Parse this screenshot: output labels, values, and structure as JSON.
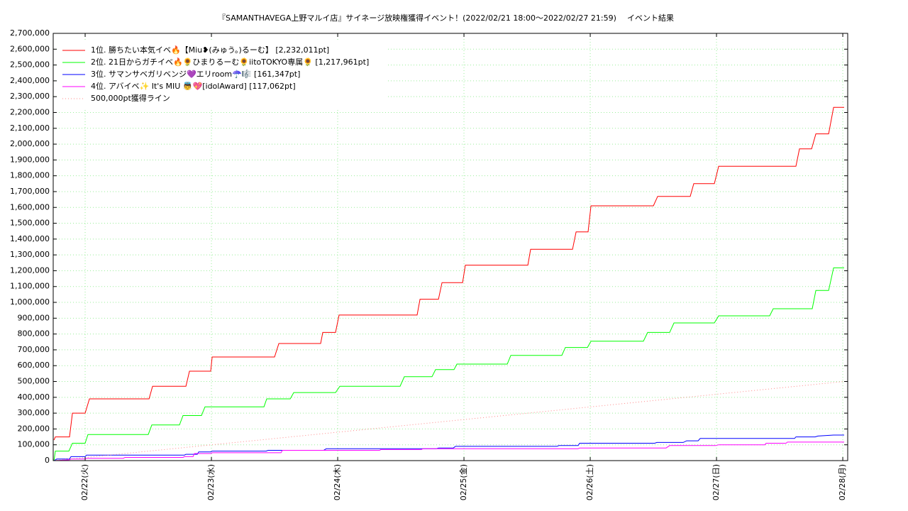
{
  "chart_data": {
    "type": "line",
    "title": "『SAMANTHAVEGA上野マルイ店』サイネージ放映権獲得イベント！(2022/02/21 18:00〜2022/02/27 21:59)",
    "subtitle": "イベント結果",
    "xlim": [
      -0.253,
      6.039
    ],
    "xticks": [
      {
        "value": 0,
        "label": "02/22(火)"
      },
      {
        "value": 1,
        "label": "02/23(水)"
      },
      {
        "value": 2,
        "label": "02/24(木)"
      },
      {
        "value": 3,
        "label": "02/25(金)"
      },
      {
        "value": 4,
        "label": "02/26(土)"
      },
      {
        "value": 5,
        "label": "02/27(日)"
      },
      {
        "value": 6,
        "label": "02/28(月)"
      }
    ],
    "ylim": [
      0,
      2700000
    ],
    "yticks": [
      {
        "value": 0,
        "label": "0"
      },
      {
        "value": 100000,
        "label": "100,000"
      },
      {
        "value": 200000,
        "label": "200,000"
      },
      {
        "value": 300000,
        "label": "300,000"
      },
      {
        "value": 400000,
        "label": "400,000"
      },
      {
        "value": 500000,
        "label": "500,000"
      },
      {
        "value": 600000,
        "label": "600,000"
      },
      {
        "value": 700000,
        "label": "700,000"
      },
      {
        "value": 800000,
        "label": "800,000"
      },
      {
        "value": 900000,
        "label": "900,000"
      },
      {
        "value": 1000000,
        "label": "1,000,000"
      },
      {
        "value": 1100000,
        "label": "1,100,000"
      },
      {
        "value": 1200000,
        "label": "1,200,000"
      },
      {
        "value": 1300000,
        "label": "1,300,000"
      },
      {
        "value": 1400000,
        "label": "1,400,000"
      },
      {
        "value": 1500000,
        "label": "1,500,000"
      },
      {
        "value": 1600000,
        "label": "1,600,000"
      },
      {
        "value": 1700000,
        "label": "1,700,000"
      },
      {
        "value": 1800000,
        "label": "1,800,000"
      },
      {
        "value": 1900000,
        "label": "1,900,000"
      },
      {
        "value": 2000000,
        "label": "2,000,000"
      },
      {
        "value": 2100000,
        "label": "2,100,000"
      },
      {
        "value": 2200000,
        "label": "2,200,000"
      },
      {
        "value": 2300000,
        "label": "2,300,000"
      },
      {
        "value": 2400000,
        "label": "2,400,000"
      },
      {
        "value": 2500000,
        "label": "2,500,000"
      },
      {
        "value": 2600000,
        "label": "2,600,000"
      },
      {
        "value": 2700000,
        "label": "2,700,000"
      }
    ],
    "grid": true,
    "legend": "top-left",
    "series": [
      {
        "name": "1位. 勝ちたい本気イベ🔥【Miu❥(みゅう。)るーむ】 [2,232,011pt]",
        "color": "#ff0000",
        "x": [
          -0.247,
          -0.236,
          -0.124,
          -0.101,
          0,
          0.034,
          0.506,
          0.534,
          0.798,
          0.826,
          0.994,
          1.006,
          1.5,
          1.534,
          1.865,
          1.882,
          1.983,
          2.011,
          2.629,
          2.652,
          2.798,
          2.826,
          2.989,
          3.011,
          3.506,
          3.528,
          3.86,
          3.888,
          3.983,
          4.006,
          4.5,
          4.534,
          4.792,
          4.82,
          4.983,
          5.017,
          5.629,
          5.657,
          5.753,
          5.787,
          5.888,
          5.927,
          6.011
        ],
        "values": [
          130000,
          150000,
          150000,
          300000,
          300000,
          390000,
          390000,
          470000,
          470000,
          565000,
          565000,
          655000,
          655000,
          740000,
          740000,
          810000,
          810000,
          920000,
          920000,
          1020000,
          1020000,
          1125000,
          1125000,
          1235000,
          1235000,
          1335000,
          1335000,
          1445000,
          1445000,
          1610000,
          1610000,
          1670000,
          1670000,
          1750000,
          1750000,
          1860000,
          1860000,
          1970000,
          1970000,
          2065000,
          2065000,
          2232011,
          2232011
        ]
      },
      {
        "name": "2位. 21日からガチイベ🔥🌻ひまりるーむ🌻iitoTOKYO専属🌻 [1,217,961pt]",
        "color": "#00ff00",
        "x": [
          -0.247,
          -0.236,
          -0.129,
          -0.101,
          0,
          0.022,
          0.5,
          0.528,
          0.747,
          0.775,
          0.921,
          0.949,
          1.416,
          1.438,
          1.624,
          1.652,
          1.983,
          2.017,
          2.494,
          2.528,
          2.747,
          2.775,
          2.921,
          2.944,
          3.343,
          3.371,
          3.775,
          3.803,
          3.978,
          4.006,
          4.421,
          4.455,
          4.629,
          4.663,
          4.983,
          5.017,
          5.421,
          5.449,
          5.758,
          5.787,
          5.888,
          5.927,
          6.011
        ],
        "values": [
          0,
          60000,
          60000,
          110000,
          110000,
          165000,
          165000,
          225000,
          225000,
          285000,
          285000,
          340000,
          340000,
          390000,
          390000,
          430000,
          430000,
          470000,
          470000,
          530000,
          530000,
          575000,
          575000,
          610000,
          610000,
          665000,
          665000,
          715000,
          715000,
          755000,
          755000,
          810000,
          810000,
          870000,
          870000,
          915000,
          915000,
          960000,
          960000,
          1075000,
          1075000,
          1217961,
          1217961
        ]
      },
      {
        "name": "3位. サマンサベガリベンジ💜エリroom☂️🎼 [161,347pt]",
        "color": "#0000ff",
        "x": [
          -0.247,
          -0.225,
          -0.124,
          -0.112,
          0,
          0.011,
          0.787,
          0.798,
          0.888,
          0.899,
          0.994,
          1.006,
          1.433,
          1.449,
          1.888,
          1.91,
          2.781,
          2.798,
          2.916,
          2.933,
          3.736,
          3.753,
          3.904,
          3.916,
          4.511,
          4.528,
          4.736,
          4.764,
          4.854,
          4.871,
          5.618,
          5.629,
          5.781,
          5.803,
          5.927,
          6.011
        ],
        "values": [
          0,
          10000,
          10000,
          25000,
          25000,
          35000,
          35000,
          40000,
          40000,
          55000,
          55000,
          60000,
          60000,
          65000,
          65000,
          75000,
          75000,
          80000,
          80000,
          90000,
          90000,
          95000,
          95000,
          110000,
          110000,
          115000,
          115000,
          125000,
          125000,
          140000,
          140000,
          150000,
          150000,
          155000,
          161347,
          161347
        ]
      },
      {
        "name": "4位. アバイベ✨ It's MIU 👼💖[idolAward] [117,062pt]",
        "color": "#ff00ff",
        "x": [
          -0.247,
          -0.124,
          -0.112,
          0,
          0.011,
          0.303,
          0.315,
          0.775,
          0.787,
          0.854,
          0.865,
          0.994,
          1.006,
          1.551,
          1.562,
          2.331,
          2.343,
          2.663,
          2.674,
          3.904,
          3.916,
          4.601,
          4.629,
          4.994,
          5.017,
          5.382,
          5.393,
          5.551,
          5.562,
          6.011
        ],
        "values": [
          0,
          5000,
          10000,
          10000,
          15000,
          15000,
          20000,
          20000,
          25000,
          25000,
          45000,
          45000,
          50000,
          50000,
          65000,
          65000,
          70000,
          70000,
          75000,
          75000,
          80000,
          80000,
          95000,
          95000,
          100000,
          100000,
          110000,
          110000,
          117062,
          117062
        ]
      },
      {
        "name": "500,000pt獲得ライン",
        "color": "#ff8888",
        "dash": true,
        "x": [
          -0.247,
          6.011
        ],
        "values": [
          0,
          500000
        ]
      }
    ]
  }
}
